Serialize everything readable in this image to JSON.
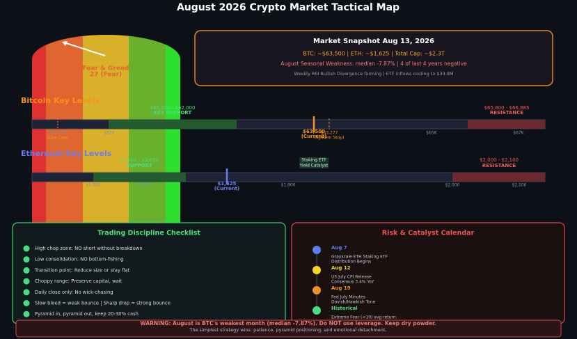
{
  "title": "August 2026 Crypto Market Tactical Map",
  "gauge": {
    "label": "Fear & Greed",
    "value_text": "27 (Fear)"
  },
  "snapshot": {
    "title": "Market Snapshot  Aug 13, 2026",
    "prices": "BTC: ~$63,500  |  ETH: ~$1,625  |  Total Cap: ~$2.3T",
    "seasonal": "August Seasonal Weakness: median -7.87% | 4 of last 4 years negative",
    "signals": "Weekly RSI Bullish Divergence forming | ETF inflows cooling to $33.8M"
  },
  "btc": {
    "heading": "Bitcoin Key Levels",
    "support": {
      "range": "$60,000 - $62,000",
      "label": "KEY SUPPORT"
    },
    "resistance": {
      "range": "$65,800 - $66,885",
      "label": "RESISTANCE"
    },
    "current": {
      "price": "$63,500",
      "label": "(Current)"
    },
    "stop": {
      "price": "$63,277",
      "label": "(System Stop)"
    },
    "low": {
      "price": "$60,000",
      "label": "(Line Low)"
    },
    "ticks": [
      "$62K",
      "$65K",
      "$67K"
    ]
  },
  "eth": {
    "heading": "Ethereum Key Levels",
    "support": {
      "range": "$1,500 - $1,600",
      "label": "SUPPORT"
    },
    "resistance": {
      "range": "$2,000 - $2,100",
      "label": "RESISTANCE"
    },
    "current": {
      "price": "$1,625",
      "label": "(Current)"
    },
    "catalyst": [
      "Staking ETF",
      "Yield Catalyst"
    ],
    "ticks": [
      "$1,500",
      "$1,600",
      "$1,800",
      "$2,000",
      "$2,100"
    ]
  },
  "checklist": {
    "title": "Trading Discipline Checklist",
    "items": [
      "High chop zone: NO short without breakdown",
      "Low consolidation: NO bottom-fishing",
      "Transition point: Reduce size or stay flat",
      "Choppy range: Preserve capital, wait",
      "Daily close only: No wick-chasing",
      "Slow bleed = weak bounce | Sharp drop = strong bounce",
      "Pyramid in, pyramid out, keep 20-30% cash"
    ]
  },
  "calendar": {
    "title": "Risk & Catalyst Calendar",
    "events": [
      {
        "date": "Aug 7",
        "lines": [
          "Grayscale ETH Staking ETF",
          "Distribution Begins"
        ]
      },
      {
        "date": "Aug 12",
        "lines": [
          "US July CPI Release",
          "Consensus 3.4% YoY"
        ]
      },
      {
        "date": "Aug 19",
        "lines": [
          "Fed July Minutes",
          "Dovish/Hawkish Tone"
        ]
      },
      {
        "date": "Historical",
        "lines": [
          "Extreme Fear (<10) avg return:"
        ]
      }
    ]
  },
  "warning": {
    "text": "WARNING: August is BTC's weakest month (median -7.87%). Do NOT use leverage. Keep dry powder.",
    "subtext": "The simplest strategy wins: patience, pyramid positioning, and emotional detachment."
  }
}
